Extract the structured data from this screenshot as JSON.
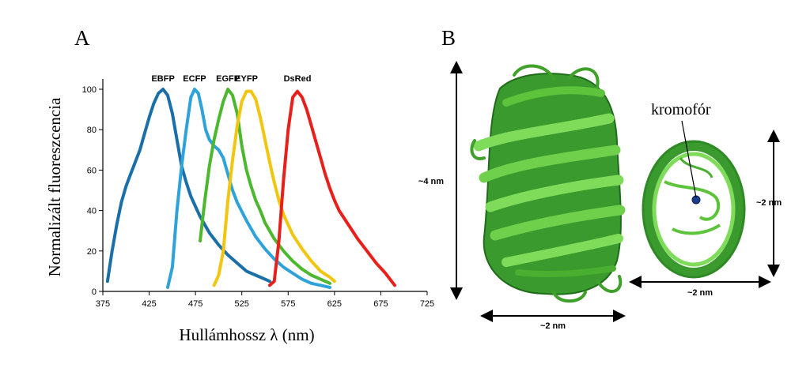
{
  "panel_a_label": "A",
  "panel_b_label": "B",
  "chart_data": {
    "type": "line",
    "xlabel": "Hullámhossz λ (nm)",
    "ylabel": "Normalizált fluoreszcencia",
    "xlim": [
      375,
      725
    ],
    "ylim": [
      0,
      100
    ],
    "xticks": [
      375,
      425,
      475,
      525,
      575,
      625,
      675,
      725
    ],
    "yticks": [
      0,
      20,
      40,
      60,
      80,
      100
    ],
    "grid": false,
    "series": [
      {
        "name": "EBFP",
        "color": "#1b6fa8",
        "points": [
          [
            380,
            5
          ],
          [
            385,
            20
          ],
          [
            390,
            33
          ],
          [
            395,
            44
          ],
          [
            400,
            52
          ],
          [
            405,
            58
          ],
          [
            410,
            64
          ],
          [
            415,
            70
          ],
          [
            420,
            78
          ],
          [
            425,
            86
          ],
          [
            430,
            93
          ],
          [
            435,
            98
          ],
          [
            440,
            100
          ],
          [
            445,
            97
          ],
          [
            450,
            88
          ],
          [
            455,
            75
          ],
          [
            460,
            62
          ],
          [
            465,
            54
          ],
          [
            470,
            47
          ],
          [
            475,
            42
          ],
          [
            480,
            37
          ],
          [
            490,
            29
          ],
          [
            500,
            23
          ],
          [
            510,
            18
          ],
          [
            520,
            14
          ],
          [
            530,
            10
          ],
          [
            540,
            8
          ],
          [
            550,
            6
          ],
          [
            555,
            5
          ]
        ]
      },
      {
        "name": "ECFP",
        "color": "#2fa3d9",
        "points": [
          [
            445,
            2
          ],
          [
            450,
            12
          ],
          [
            455,
            40
          ],
          [
            460,
            62
          ],
          [
            465,
            80
          ],
          [
            470,
            96
          ],
          [
            474,
            100
          ],
          [
            478,
            98
          ],
          [
            482,
            90
          ],
          [
            486,
            80
          ],
          [
            490,
            75
          ],
          [
            495,
            72
          ],
          [
            500,
            70
          ],
          [
            505,
            66
          ],
          [
            510,
            58
          ],
          [
            515,
            50
          ],
          [
            520,
            44
          ],
          [
            530,
            35
          ],
          [
            540,
            27
          ],
          [
            550,
            21
          ],
          [
            560,
            16
          ],
          [
            570,
            12
          ],
          [
            580,
            9
          ],
          [
            590,
            6
          ],
          [
            600,
            4
          ],
          [
            610,
            3
          ],
          [
            620,
            2
          ]
        ]
      },
      {
        "name": "EGFP",
        "color": "#4db82f",
        "points": [
          [
            480,
            25
          ],
          [
            485,
            45
          ],
          [
            490,
            62
          ],
          [
            495,
            75
          ],
          [
            500,
            85
          ],
          [
            505,
            94
          ],
          [
            510,
            100
          ],
          [
            515,
            97
          ],
          [
            520,
            88
          ],
          [
            525,
            72
          ],
          [
            530,
            60
          ],
          [
            535,
            52
          ],
          [
            540,
            45
          ],
          [
            545,
            40
          ],
          [
            550,
            34
          ],
          [
            560,
            26
          ],
          [
            570,
            20
          ],
          [
            580,
            15
          ],
          [
            590,
            11
          ],
          [
            600,
            8
          ],
          [
            610,
            6
          ],
          [
            620,
            4
          ]
        ]
      },
      {
        "name": "EYFP",
        "color": "#f2c510",
        "points": [
          [
            495,
            3
          ],
          [
            500,
            8
          ],
          [
            505,
            20
          ],
          [
            510,
            45
          ],
          [
            515,
            65
          ],
          [
            520,
            82
          ],
          [
            525,
            94
          ],
          [
            530,
            99
          ],
          [
            535,
            99
          ],
          [
            540,
            95
          ],
          [
            545,
            86
          ],
          [
            550,
            75
          ],
          [
            555,
            64
          ],
          [
            560,
            54
          ],
          [
            565,
            45
          ],
          [
            570,
            38
          ],
          [
            580,
            28
          ],
          [
            590,
            21
          ],
          [
            600,
            15
          ],
          [
            610,
            10
          ],
          [
            620,
            7
          ],
          [
            625,
            5
          ]
        ]
      },
      {
        "name": "DsRed",
        "color": "#e8201c",
        "points": [
          [
            555,
            3
          ],
          [
            560,
            5
          ],
          [
            565,
            25
          ],
          [
            570,
            55
          ],
          [
            575,
            80
          ],
          [
            580,
            96
          ],
          [
            585,
            99
          ],
          [
            590,
            96
          ],
          [
            595,
            90
          ],
          [
            600,
            82
          ],
          [
            605,
            74
          ],
          [
            610,
            66
          ],
          [
            615,
            58
          ],
          [
            620,
            51
          ],
          [
            625,
            45
          ],
          [
            630,
            40
          ],
          [
            640,
            33
          ],
          [
            650,
            26
          ],
          [
            660,
            20
          ],
          [
            670,
            14
          ],
          [
            680,
            9
          ],
          [
            690,
            3
          ]
        ]
      }
    ]
  },
  "structure": {
    "side_view": {
      "height_label": "~4 nm",
      "width_label": "~2 nm"
    },
    "top_view": {
      "chromophore_label": "kromofór",
      "height_label": "~2 nm",
      "width_label": "~2 nm"
    }
  }
}
